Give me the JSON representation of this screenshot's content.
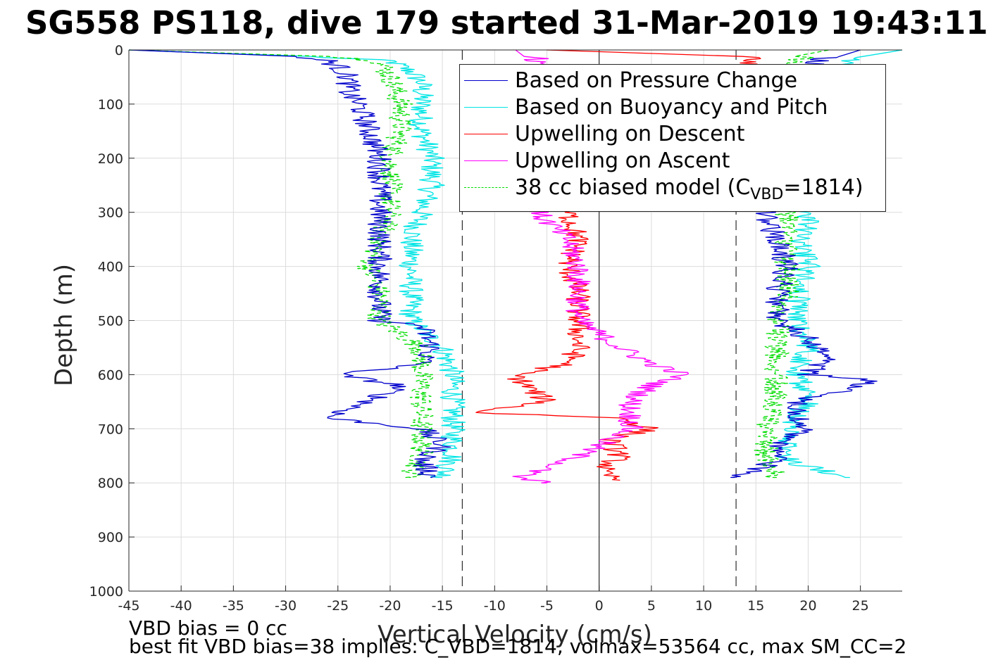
{
  "title": "SG558 PS118, dive 179 started 31-Mar-2019 19:43:11",
  "footer": {
    "line1": "VBD bias = 0 cc",
    "line2": "best fit VBD bias=38 implies: C_VBD=1814, volmax=53564 cc, max SM_CC=2"
  },
  "chart_data": {
    "type": "line",
    "xlabel": "Vertical Velocity (cm/s)",
    "ylabel": "Depth (m)",
    "xlim": [
      -45,
      29
    ],
    "ylim": [
      0,
      1000
    ],
    "y_reversed": true,
    "grid": true,
    "legend_position": "top-right",
    "xticks": [
      -45,
      -40,
      -35,
      -30,
      -25,
      -20,
      -15,
      -10,
      -5,
      0,
      5,
      10,
      15,
      20,
      25
    ],
    "yticks": [
      0,
      100,
      200,
      300,
      400,
      500,
      600,
      700,
      800,
      900,
      1000
    ],
    "reference_lines": [
      {
        "x": -13.1,
        "style": "dashed",
        "color": "#000000"
      },
      {
        "x": 0,
        "style": "solid",
        "color": "#000000"
      },
      {
        "x": 13.1,
        "style": "dashed",
        "color": "#000000"
      }
    ],
    "series": [
      {
        "name": "Based on Pressure Change",
        "color": "#0000cc",
        "style": "solid",
        "branches": [
          {
            "depth": [
              0,
              5,
              10,
              20,
              30,
              50,
              80,
              100,
              150,
              200,
              250,
              300,
              350,
              400,
              450,
              500,
              510,
              550,
              580,
              600,
              620,
              650,
              680,
              700,
              730,
              760,
              790
            ],
            "velocity": [
              -45,
              -40,
              -30,
              -26,
              -25,
              -24,
              -24,
              -23,
              -22,
              -21,
              -21,
              -21,
              -21,
              -21,
              -21,
              -21,
              -17,
              -16,
              -17,
              -25,
              -19,
              -22,
              -26,
              -17,
              -15,
              -17,
              -16
            ]
          },
          {
            "depth": [
              790,
              760,
              730,
              700,
              680,
              650,
              620,
              610,
              600,
              580,
              560,
              550,
              520,
              500,
              450,
              400,
              350,
              320,
              300,
              200,
              100,
              50,
              30,
              10,
              0
            ],
            "velocity": [
              13,
              17,
              17,
              20,
              19,
              19,
              25,
              26,
              20,
              21,
              22,
              21,
              19,
              17,
              17,
              18,
              17,
              16,
              16,
              17,
              18,
              19,
              20,
              22,
              25
            ]
          }
        ]
      },
      {
        "name": "Based on Buoyancy and Pitch",
        "color": "#00e5e5",
        "style": "solid",
        "branches": [
          {
            "depth": [
              0,
              5,
              20,
              40,
              60,
              100,
              150,
              200,
              250,
              300,
              350,
              400,
              450,
              500,
              550,
              600,
              650,
              700,
              750,
              790
            ],
            "velocity": [
              -45,
              -35,
              -20,
              -18,
              -17,
              -17,
              -17,
              -16,
              -16,
              -17,
              -18,
              -18,
              -18,
              -18,
              -15,
              -14,
              -14,
              -14,
              -14,
              -15
            ]
          },
          {
            "depth": [
              790,
              760,
              700,
              650,
              600,
              550,
              500,
              450,
              400,
              350,
              320,
              300,
              100,
              30,
              0
            ],
            "velocity": [
              24,
              18,
              18,
              20,
              19,
              20,
              19,
              19,
              20,
              19,
              20,
              20,
              20,
              22,
              29
            ]
          }
        ]
      },
      {
        "name": "Upwelling on Descent",
        "color": "#ff0000",
        "style": "solid",
        "branches": [
          {
            "depth": [
              0,
              5,
              10,
              300,
              350,
              400,
              450,
              500,
              550,
              580,
              600,
              620,
              650,
              670,
              680,
              700,
              720,
              750,
              780,
              795
            ],
            "velocity": [
              -5,
              0,
              15,
              -3,
              -2,
              -3,
              -2,
              -2,
              -2,
              -3,
              -8,
              -7,
              -5,
              -12,
              2,
              5,
              1,
              2,
              0,
              2
            ]
          }
        ]
      },
      {
        "name": "Upwelling on Ascent",
        "color": "#ff00ff",
        "style": "solid",
        "branches": [
          {
            "depth": [
              0,
              5,
              10,
              300,
              350,
              400,
              450,
              500,
              550,
              580,
              600,
              620,
              650,
              700,
              730,
              760,
              790,
              800
            ],
            "velocity": [
              -8,
              -3,
              -6,
              -6,
              -3,
              -2,
              -2,
              -2,
              2,
              5,
              8,
              5,
              3,
              3,
              0,
              -3,
              -8,
              -5
            ]
          }
        ]
      },
      {
        "name": "38 cc biased model (C",
        "label_sub": "VBD",
        "label_tail": "=1814)",
        "color": "#00dd00",
        "style": "dashed",
        "branches": [
          {
            "depth": [
              0,
              5,
              20,
              50,
              100,
              150,
              200,
              250,
              300,
              350,
              400,
              450,
              500,
              550,
              600,
              650,
              700,
              750,
              790
            ],
            "velocity": [
              -45,
              -30,
              -21,
              -20,
              -19,
              -19,
              -20,
              -20,
              -20,
              -21,
              -22,
              -21,
              -21,
              -17,
              -17,
              -17,
              -17,
              -17,
              -18
            ]
          },
          {
            "depth": [
              790,
              750,
              700,
              650,
              600,
              550,
              500,
              450,
              400,
              350,
              300,
              100,
              30,
              10,
              0
            ],
            "velocity": [
              17,
              16,
              16,
              17,
              17,
              17,
              17,
              18,
              18,
              18,
              18,
              18,
              18,
              20,
              22
            ]
          }
        ]
      }
    ]
  }
}
